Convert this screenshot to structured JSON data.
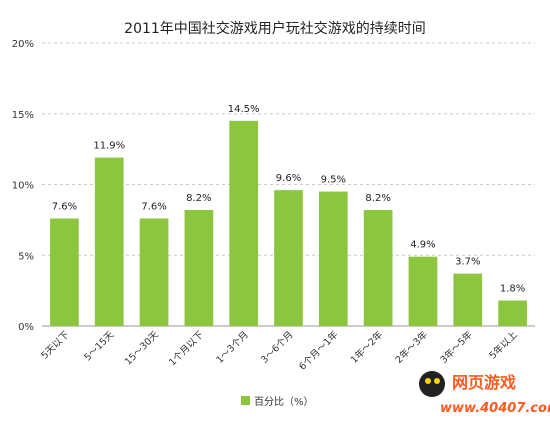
{
  "chart_data": {
    "type": "bar",
    "title": "2011年中国社交游戏用户玩社交游戏的持续时间",
    "categories": [
      "5天以下",
      "5～15天",
      "15～30天",
      "1个月以下",
      "1～3个月",
      "3～6个月",
      "6个月～1年",
      "1年～2年",
      "2年～3年",
      "3年～5年",
      "5年以上"
    ],
    "series": [
      {
        "name": "百分比（%）",
        "values": [
          7.6,
          11.9,
          7.6,
          8.2,
          14.5,
          9.6,
          9.5,
          8.2,
          4.9,
          3.7,
          1.8
        ],
        "labels": [
          "7.6%",
          "11.9%",
          "7.6%",
          "8.2%",
          "14.5%",
          "9.6%",
          "9.5%",
          "8.2%",
          "4.9%",
          "3.7%",
          "1.8%"
        ],
        "color": "#8cc63f"
      }
    ],
    "ylim": [
      0,
      20
    ],
    "yticks": [
      "0%",
      "5%",
      "10%",
      "15%",
      "20%"
    ],
    "grid": true,
    "legend": "bottom"
  },
  "watermark": {
    "brand": "网页游戏",
    "url": "www.40407.com",
    "color": "#ff5a1f"
  }
}
